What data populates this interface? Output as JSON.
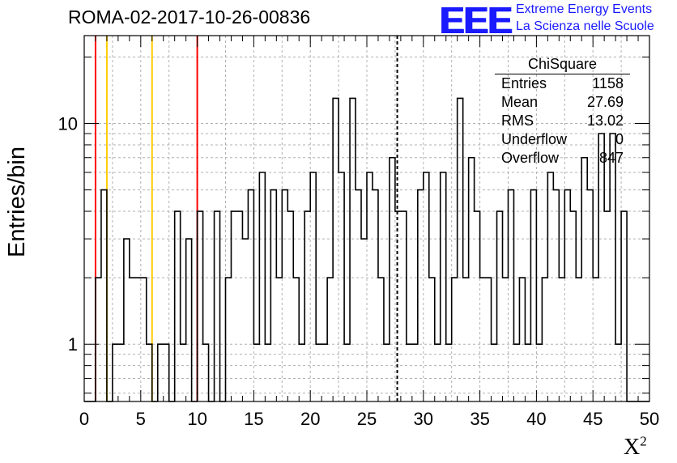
{
  "title": "ROMA-02-2017-10-26-00836",
  "logo": {
    "mark": "EEE",
    "line1": "Extreme Energy Events",
    "line2": "La Scienza nelle Scuole",
    "color": "#1a1aff"
  },
  "stats": {
    "title": "ChiSquare",
    "rows": [
      {
        "key": "Entries",
        "value": "1158"
      },
      {
        "key": "Mean",
        "value": "27.69"
      },
      {
        "key": "RMS",
        "value": "13.02"
      },
      {
        "key": "Underflow",
        "value": "0"
      },
      {
        "key": "Overflow",
        "value": "847"
      }
    ]
  },
  "chart_data": {
    "type": "histogram",
    "title": "ROMA-02-2017-10-26-00836",
    "xlabel": "X²",
    "ylabel": "Entries/bin",
    "xlim": [
      0,
      50
    ],
    "ylim": [
      0.55,
      25
    ],
    "yscale": "log",
    "grid": true,
    "bin_width": 0.5,
    "x_ticks": [
      "0",
      "5",
      "10",
      "15",
      "20",
      "25",
      "30",
      "35",
      "40",
      "45",
      "50"
    ],
    "y_ticks": [
      "1",
      "10"
    ],
    "values": [
      0,
      0,
      2,
      5,
      0,
      1,
      1,
      3,
      2,
      2,
      2,
      1,
      0,
      1,
      1,
      0,
      4,
      1,
      3,
      0,
      4,
      1,
      0,
      4,
      0,
      2,
      4,
      4,
      3,
      5,
      1,
      6,
      1,
      5,
      2,
      5,
      4,
      2,
      1,
      4,
      6,
      1,
      1,
      2,
      13,
      6,
      1,
      13,
      5,
      3,
      6,
      5,
      2,
      1,
      7,
      4,
      4,
      1,
      1,
      5,
      6,
      2,
      1,
      6,
      1,
      2,
      13,
      2,
      7,
      4,
      2,
      2,
      1,
      4,
      2,
      5,
      1,
      2,
      1,
      5,
      1,
      2,
      6,
      5,
      2,
      5,
      4,
      2,
      7,
      5,
      2,
      9,
      4,
      9,
      1,
      4,
      0,
      0,
      0,
      0
    ],
    "markers": [
      {
        "x": 1,
        "color": "#ff0000"
      },
      {
        "x": 2,
        "color": "#ffcc00"
      },
      {
        "x": 6,
        "color": "#ffcc00"
      },
      {
        "x": 10,
        "color": "#ff0000"
      },
      {
        "x": 27.69,
        "color": "#000000",
        "style": "dashed"
      }
    ]
  }
}
